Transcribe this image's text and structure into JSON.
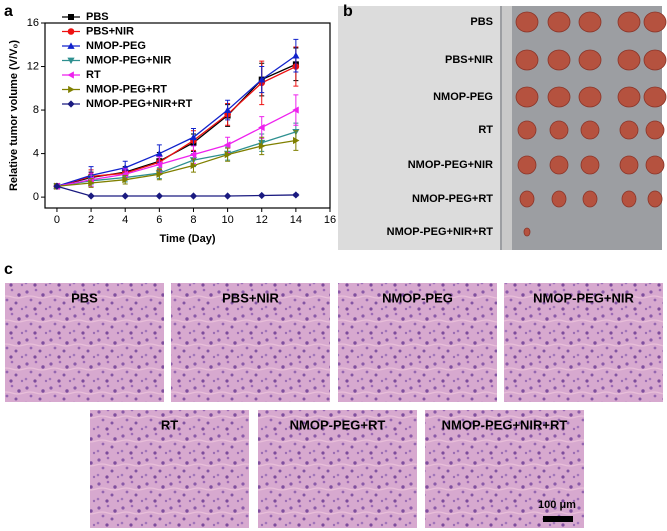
{
  "panel_labels": [
    "a",
    "b",
    "c"
  ],
  "chart_data": {
    "type": "line",
    "xlabel": "Time (Day)",
    "ylabel": "Relative tumor volume (V/V₀)",
    "x": [
      0,
      2,
      4,
      6,
      8,
      10,
      12,
      14
    ],
    "xlim": [
      -0.7,
      16
    ],
    "xticks": [
      0,
      2,
      4,
      6,
      8,
      10,
      12,
      14,
      16
    ],
    "ylim": [
      -1,
      16
    ],
    "yticks": [
      0,
      4,
      8,
      12,
      16
    ],
    "legend": "upper left",
    "series": [
      {
        "name": "PBS",
        "color": "#000000",
        "marker": "square",
        "values": [
          1,
          1.8,
          2.3,
          3.3,
          5.0,
          7.5,
          10.8,
          12.2
        ],
        "errors": [
          0.1,
          0.5,
          0.5,
          0.8,
          0.8,
          1.0,
          1.5,
          1.5
        ]
      },
      {
        "name": "PBS+NIR",
        "color": "#ee1111",
        "marker": "circle",
        "values": [
          1,
          1.9,
          2.2,
          3.2,
          5.2,
          7.6,
          10.5,
          12.0
        ],
        "errors": [
          0.1,
          0.6,
          0.5,
          0.7,
          0.9,
          1.0,
          2.0,
          1.8
        ]
      },
      {
        "name": "NMOP-PEG",
        "color": "#1122cc",
        "marker": "triangle-up",
        "values": [
          1,
          2.0,
          2.7,
          4.0,
          5.5,
          8.0,
          10.8,
          13.0
        ],
        "errors": [
          0.1,
          0.8,
          0.6,
          0.8,
          0.8,
          0.9,
          1.2,
          1.5
        ]
      },
      {
        "name": "NMOP-PEG+NIR",
        "color": "#2e9090",
        "marker": "triangle-down",
        "values": [
          1,
          1.5,
          1.8,
          2.2,
          3.4,
          4.0,
          5.0,
          6.0
        ],
        "errors": [
          0.1,
          0.5,
          0.4,
          0.5,
          0.6,
          0.6,
          0.8,
          0.8
        ]
      },
      {
        "name": "RT",
        "color": "#ee22ee",
        "marker": "triangle-left",
        "values": [
          1,
          1.6,
          2.1,
          3.0,
          3.9,
          4.8,
          6.4,
          8.0
        ],
        "errors": [
          0.1,
          0.6,
          0.5,
          0.7,
          0.8,
          0.7,
          1.0,
          1.4
        ]
      },
      {
        "name": "NMOP-PEG+RT",
        "color": "#808000",
        "marker": "triangle-right",
        "values": [
          1,
          1.3,
          1.6,
          2.1,
          2.9,
          3.9,
          4.7,
          5.2
        ],
        "errors": [
          0.1,
          0.4,
          0.4,
          0.5,
          0.6,
          0.6,
          0.8,
          0.9
        ]
      },
      {
        "name": "NMOP-PEG+NIR+RT",
        "color": "#1a1a80",
        "marker": "diamond",
        "values": [
          1,
          0.1,
          0.1,
          0.1,
          0.1,
          0.1,
          0.15,
          0.2
        ],
        "errors": [
          0.1,
          0.05,
          0.05,
          0.05,
          0.05,
          0.05,
          0.05,
          0.1
        ]
      }
    ]
  },
  "photo": {
    "labels": [
      "PBS",
      "PBS+NIR",
      "NMOP-PEG",
      "RT",
      "NMOP-PEG+NIR",
      "NMOP-PEG+RT",
      "NMOP-PEG+NIR+RT"
    ]
  },
  "histology": {
    "labels": [
      "PBS",
      "PBS+NIR",
      "NMOP-PEG",
      "NMOP-PEG+NIR",
      "RT",
      "NMOP-PEG+RT",
      "NMOP-PEG+NIR+RT"
    ],
    "scale_bar": "100 μm"
  }
}
